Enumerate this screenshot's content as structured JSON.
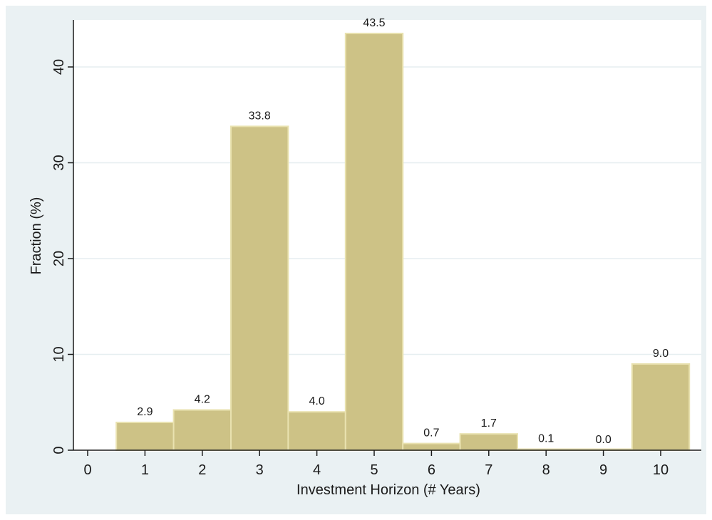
{
  "chart_data": {
    "type": "bar",
    "title": "",
    "xlabel": "Investment Horizon (# Years)",
    "ylabel": "Fraction (%)",
    "x_ticks": [
      0,
      1,
      2,
      3,
      4,
      5,
      6,
      7,
      8,
      9,
      10
    ],
    "y_ticks": [
      0,
      10,
      20,
      30,
      40
    ],
    "xlim": [
      -0.5,
      10.5
    ],
    "ylim": [
      0,
      45
    ],
    "grid": true,
    "legend": false,
    "bar_color": "#cdc286",
    "bar_edge_color": "#e9e2b0",
    "categories": [
      1,
      2,
      3,
      4,
      5,
      6,
      7,
      8,
      9,
      10
    ],
    "values": [
      2.9,
      4.2,
      33.8,
      4.0,
      43.5,
      0.7,
      1.7,
      0.1,
      0.0,
      9.0
    ],
    "value_labels": [
      "2.9",
      "4.2",
      "33.8",
      "4.0",
      "43.5",
      "0.7",
      "1.7",
      "0.1",
      "0.0",
      "9.0"
    ]
  }
}
